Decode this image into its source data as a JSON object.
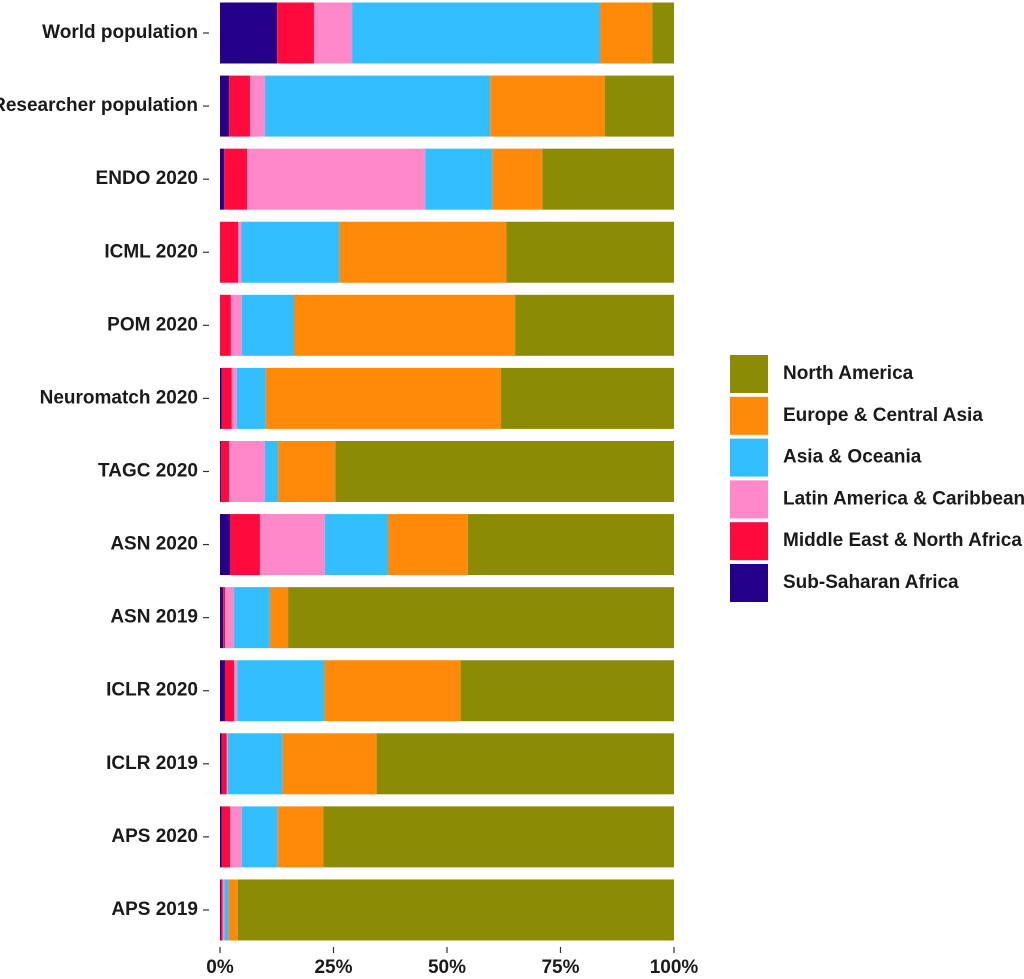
{
  "chart_data": {
    "type": "stacked_barh",
    "categories": [
      "World population",
      "Researcher population",
      "ENDO 2020",
      "ICML 2020",
      "POM 2020",
      "Neuromatch 2020",
      "TAGC 2020",
      "ASN 2020",
      "ASN 2019",
      "ICLR 2020",
      "ICLR 2019",
      "APS 2020",
      "APS 2019"
    ],
    "series": [
      {
        "name": "Sub-Saharan Africa",
        "color": "#24008a",
        "values": [
          12.6,
          2.0,
          0.9,
          0,
          0,
          0.4,
          0.2,
          2.2,
          0.7,
          1.1,
          0.4,
          0.4,
          0.2
        ]
      },
      {
        "name": "Middle East & North Africa",
        "color": "#ff0a3c",
        "values": [
          8.1,
          4.6,
          5.1,
          4.0,
          2.4,
          2.2,
          1.8,
          6.6,
          0.4,
          2.0,
          1.1,
          1.8,
          0.4
        ]
      },
      {
        "name": "Latin America & Caribbean",
        "color": "#ff88c8",
        "values": [
          8.4,
          3.3,
          39.2,
          0.7,
          2.4,
          1.1,
          7.9,
          14.3,
          2.0,
          0.7,
          0.2,
          2.6,
          0.4
        ]
      },
      {
        "name": "Asia & Oceania",
        "color": "#33bfff",
        "values": [
          54.6,
          49.6,
          14.8,
          21.6,
          11.5,
          6.4,
          2.9,
          13.9,
          7.9,
          19.2,
          12.1,
          7.9,
          0.9
        ]
      },
      {
        "name": "Europe & Central Asia",
        "color": "#ff8a0a",
        "values": [
          11.5,
          25.3,
          11.0,
          36.8,
          48.7,
          51.8,
          12.6,
          17.6,
          4.0,
          30.0,
          20.7,
          10.1,
          2.0
        ]
      },
      {
        "name": "North America",
        "color": "#8b8b05",
        "values": [
          4.8,
          15.2,
          29.0,
          36.9,
          35.0,
          38.1,
          74.6,
          45.4,
          85.0,
          47.0,
          65.5,
          77.2,
          96.1
        ]
      }
    ],
    "xlim": [
      0,
      100
    ],
    "xticks": [
      {
        "value": 0,
        "label": "0%"
      },
      {
        "value": 25,
        "label": "25%"
      },
      {
        "value": 50,
        "label": "50%"
      },
      {
        "value": 75,
        "label": "75%"
      },
      {
        "value": 100,
        "label": "100%"
      }
    ]
  }
}
